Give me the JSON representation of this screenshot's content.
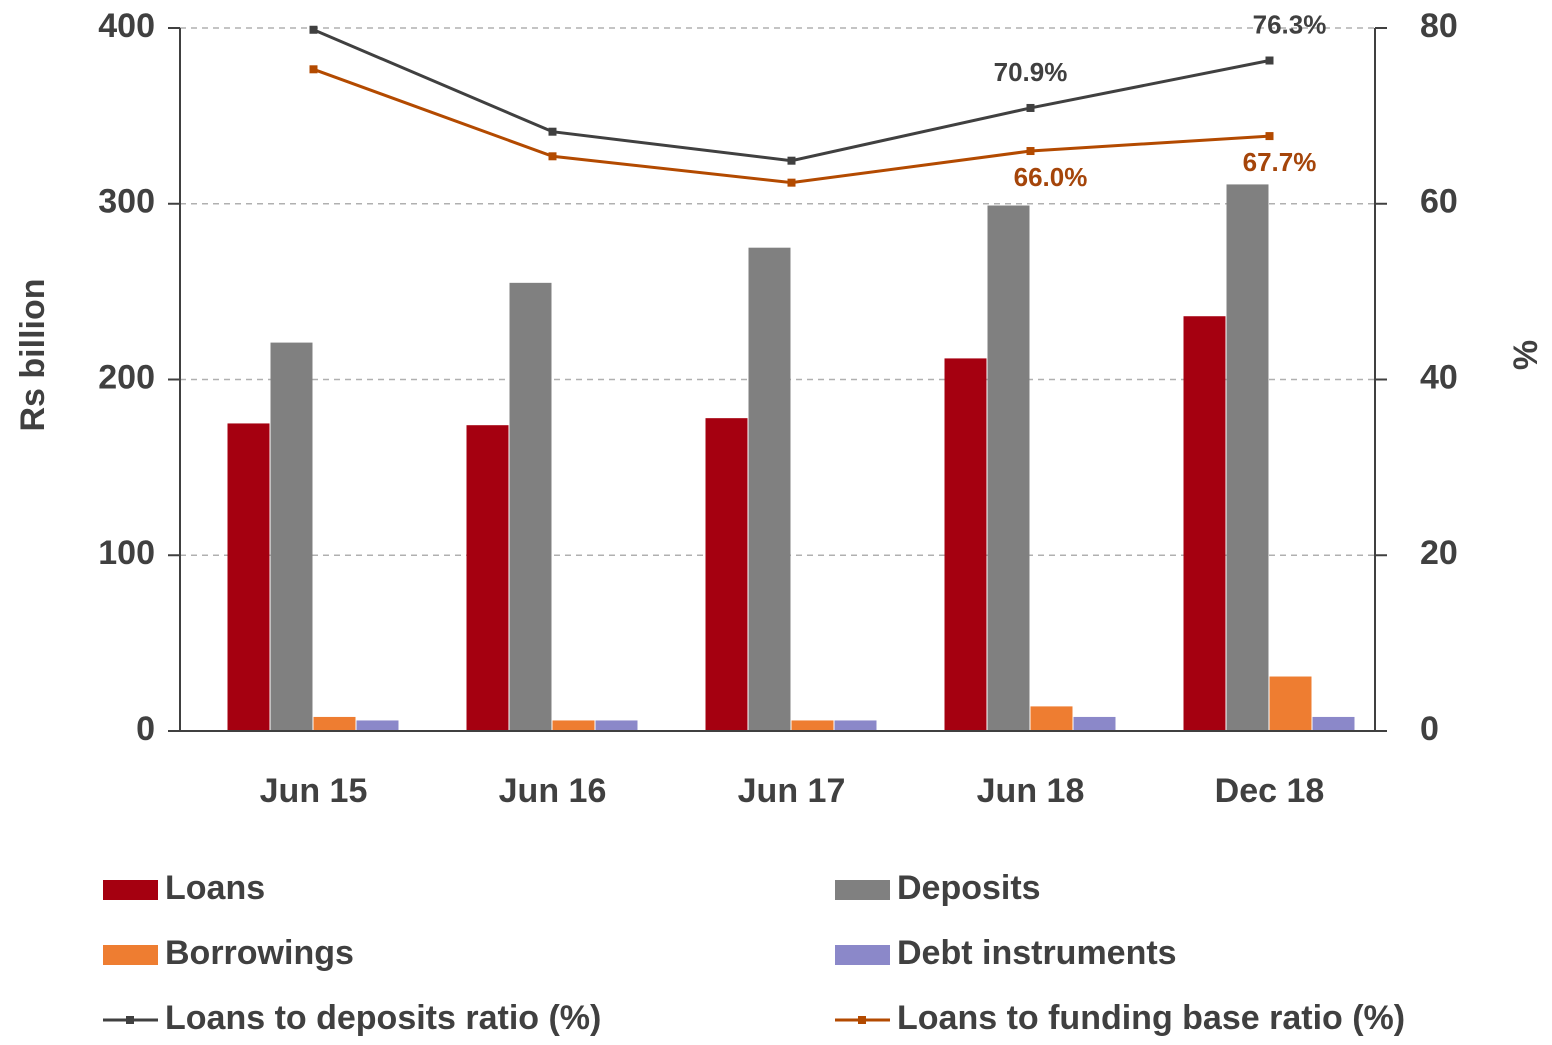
{
  "chart_data": {
    "type": "bar",
    "categories": [
      "Jun 15",
      "Jun 16",
      "Jun 17",
      "Jun 18",
      "Dec 18"
    ],
    "ylabel": "Rs billion",
    "y2label": "%",
    "ylim": [
      0,
      400
    ],
    "yticks": [
      0,
      100,
      200,
      300,
      400
    ],
    "y2lim": [
      0,
      80
    ],
    "y2ticks": [
      0,
      20,
      40,
      60,
      80
    ],
    "grid": true,
    "series": [
      {
        "name": "Loans",
        "type": "bar",
        "color": "#a50010",
        "values": [
          175,
          174,
          178,
          212,
          236
        ]
      },
      {
        "name": "Deposits",
        "type": "bar",
        "color": "#808080",
        "values": [
          221,
          255,
          275,
          299,
          311
        ]
      },
      {
        "name": "Borrowings",
        "type": "bar",
        "color": "#ee7d31",
        "values": [
          8,
          6,
          6,
          14,
          31
        ]
      },
      {
        "name": "Debt instruments",
        "type": "bar",
        "color": "#8b88c9",
        "values": [
          6,
          6,
          6,
          8,
          8
        ]
      },
      {
        "name": "Loans to deposits ratio (%)",
        "type": "line",
        "axis": "y2",
        "color": "#404040",
        "label_color": "#404040",
        "values": [
          79.8,
          68.2,
          64.9,
          70.9,
          76.3
        ],
        "value_labels": [
          null,
          null,
          null,
          "70.9%",
          "76.3%"
        ]
      },
      {
        "name": "Loans to funding base ratio (%)",
        "type": "line",
        "axis": "y2",
        "color": "#b34a00",
        "label_color": "#a5450a",
        "values": [
          75.3,
          65.4,
          62.4,
          66.0,
          67.7
        ],
        "value_labels": [
          null,
          null,
          null,
          "66.0%",
          "67.7%"
        ]
      }
    ]
  }
}
